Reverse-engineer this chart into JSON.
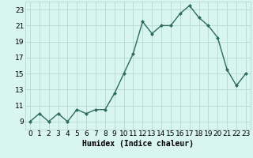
{
  "x": [
    0,
    1,
    2,
    3,
    4,
    5,
    6,
    7,
    8,
    9,
    10,
    11,
    12,
    13,
    14,
    15,
    16,
    17,
    18,
    19,
    20,
    21,
    22,
    23
  ],
  "y": [
    9,
    10,
    9,
    10,
    9,
    10.5,
    10,
    10.5,
    10.5,
    12.5,
    15,
    17.5,
    21.5,
    20,
    21,
    21,
    22.5,
    23.5,
    22,
    21,
    19.5,
    15.5,
    13.5,
    15
  ],
  "line_color": "#2d6b5e",
  "marker": "D",
  "marker_size": 2.0,
  "line_width": 1.0,
  "bg_color": "#d8f5f0",
  "grid_color": "#b8d8d0",
  "xlabel": "Humidex (Indice chaleur)",
  "xlim": [
    -0.5,
    23.5
  ],
  "ylim": [
    8,
    24
  ],
  "yticks": [
    9,
    11,
    13,
    15,
    17,
    19,
    21,
    23
  ],
  "xticks": [
    0,
    1,
    2,
    3,
    4,
    5,
    6,
    7,
    8,
    9,
    10,
    11,
    12,
    13,
    14,
    15,
    16,
    17,
    18,
    19,
    20,
    21,
    22,
    23
  ],
  "xlabel_fontsize": 7,
  "tick_fontsize": 6.5
}
